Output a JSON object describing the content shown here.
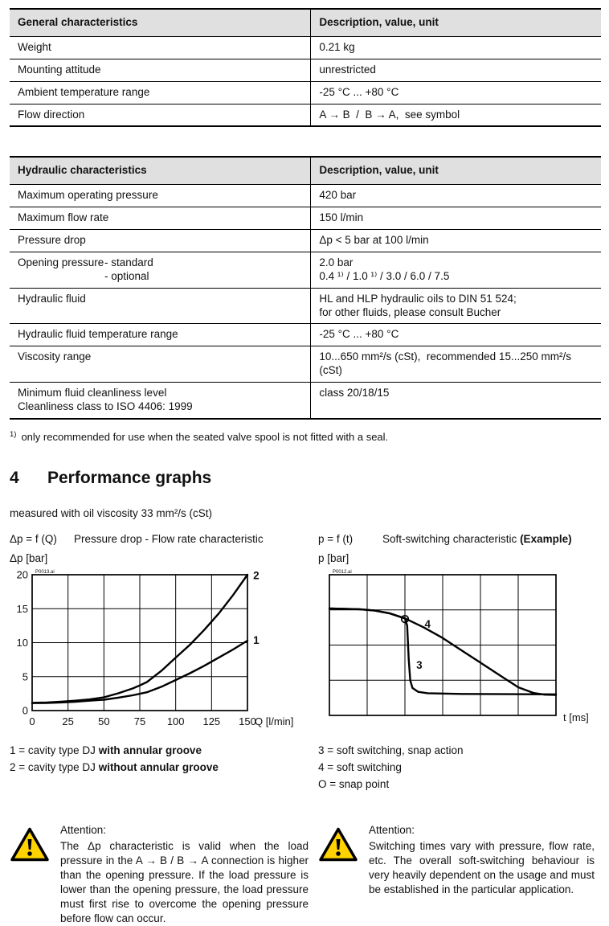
{
  "colors": {
    "table_header_bg": "#e0e0e0",
    "warning_triangle": "#ffd200"
  },
  "general_table": {
    "header": [
      "General characteristics",
      "Description, value, unit"
    ],
    "rows": [
      {
        "label": "Weight",
        "value": "0.21 kg"
      },
      {
        "label": "Mounting attitude",
        "value": "unrestricted"
      },
      {
        "label": "Ambient temperature range",
        "value": "-25 °C ... +80 °C"
      },
      {
        "label": "Flow direction",
        "value": "A → B  /  B → A,  see symbol"
      }
    ]
  },
  "hydraulic_table": {
    "header": [
      "Hydraulic characteristics",
      "Description, value, unit"
    ],
    "rows": [
      {
        "label": "Maximum operating pressure",
        "value": "420 bar"
      },
      {
        "label": "Maximum flow rate",
        "value": "150 l/min"
      },
      {
        "label": "Pressure drop",
        "value": "Δp < 5 bar at 100 l/min"
      },
      {
        "label": "Opening pressure",
        "sub_labels": [
          "- standard",
          "- optional"
        ],
        "value": "2.0 bar\n0.4 ¹⁾ / 1.0 ¹⁾ / 3.0 / 6.0 / 7.5"
      },
      {
        "label": "Hydraulic fluid",
        "value": "HL and HLP hydraulic oils to DIN 51 524;\nfor other fluids, please consult Bucher"
      },
      {
        "label": "Hydraulic fluid temperature range",
        "value": "-25 °C ... +80 °C"
      },
      {
        "label": "Viscosity range",
        "value": "10...650 mm²/s (cSt),  recommended 15...250 mm²/s (cSt)"
      },
      {
        "label": "Minimum fluid cleanliness level\nCleanliness class to ISO 4406: 1999",
        "value": "class 20/18/15"
      }
    ]
  },
  "footnote": {
    "marker": "1)",
    "text": "only recommended for use when the seated valve spool is not fitted with a seal."
  },
  "section": {
    "number": "4",
    "title": "Performance graphs",
    "measured_note": "measured with oil viscosity 33 mm²/s (cSt)"
  },
  "chart_data": [
    {
      "type": "line",
      "name": "pressure-drop-flow-rate",
      "equation": "Δp = f (Q)",
      "title": "Pressure drop - Flow rate characteristic",
      "ylabel": "Δp [bar]",
      "xlabel": "Q [l/min]",
      "watermark": "P0013.ai",
      "xlim": [
        0,
        150
      ],
      "ylim": [
        0,
        20
      ],
      "xticks": [
        0,
        25,
        50,
        75,
        100,
        125,
        150
      ],
      "yticks": [
        0,
        5,
        10,
        15,
        20
      ],
      "grid": true,
      "legend_position": "right-of-curve-end",
      "series": [
        {
          "name": "2",
          "points": [
            [
              0,
              1.15
            ],
            [
              10,
              1.2
            ],
            [
              20,
              1.3
            ],
            [
              30,
              1.45
            ],
            [
              40,
              1.65
            ],
            [
              50,
              1.95
            ],
            [
              60,
              2.55
            ],
            [
              70,
              3.25
            ],
            [
              75,
              3.7
            ],
            [
              80,
              4.2
            ],
            [
              90,
              5.85
            ],
            [
              100,
              7.8
            ],
            [
              110,
              9.7
            ],
            [
              120,
              11.9
            ],
            [
              130,
              14.3
            ],
            [
              140,
              17.0
            ],
            [
              150,
              20.0
            ]
          ],
          "label_at": [
            154,
            19.8
          ]
        },
        {
          "name": "1",
          "points": [
            [
              0,
              1.1
            ],
            [
              10,
              1.12
            ],
            [
              20,
              1.2
            ],
            [
              30,
              1.3
            ],
            [
              40,
              1.45
            ],
            [
              50,
              1.6
            ],
            [
              60,
              1.9
            ],
            [
              70,
              2.25
            ],
            [
              80,
              2.7
            ],
            [
              90,
              3.5
            ],
            [
              100,
              4.5
            ],
            [
              110,
              5.5
            ],
            [
              120,
              6.6
            ],
            [
              130,
              7.8
            ],
            [
              140,
              9.0
            ],
            [
              150,
              10.3
            ]
          ],
          "label_at": [
            154,
            10.3
          ]
        }
      ]
    },
    {
      "type": "line",
      "name": "soft-switching",
      "equation": "p = f (t)",
      "title": "Soft-switching characteristic ",
      "title_em": "(Example)",
      "ylabel": "p [bar]",
      "xlabel": "t [ms]",
      "watermark": "P0012.ai",
      "xlim": [
        0,
        6
      ],
      "ylim": [
        0,
        4
      ],
      "xdiv": 6,
      "ydiv": 4,
      "grid": true,
      "series": [
        {
          "name": "4",
          "points": [
            [
              0,
              3.04
            ],
            [
              0.8,
              3.02
            ],
            [
              1.2,
              2.98
            ],
            [
              1.6,
              2.9
            ],
            [
              2.0,
              2.76
            ],
            [
              2.5,
              2.5
            ],
            [
              3.0,
              2.2
            ],
            [
              3.5,
              1.85
            ],
            [
              4.0,
              1.5
            ],
            [
              4.5,
              1.15
            ],
            [
              5.0,
              0.8
            ],
            [
              5.4,
              0.64
            ],
            [
              5.7,
              0.59
            ],
            [
              6,
              0.58
            ]
          ],
          "label_at": [
            2.52,
            2.58
          ]
        },
        {
          "name": "3",
          "points": [
            [
              0,
              3.04
            ],
            [
              0.8,
              3.02
            ],
            [
              1.2,
              2.98
            ],
            [
              1.6,
              2.9
            ],
            [
              2.0,
              2.76
            ],
            [
              2.06,
              2.55
            ],
            [
              2.1,
              1.6
            ],
            [
              2.14,
              1.0
            ],
            [
              2.2,
              0.78
            ],
            [
              2.35,
              0.67
            ],
            [
              2.6,
              0.63
            ],
            [
              3.5,
              0.61
            ],
            [
              6,
              0.6
            ]
          ],
          "label_at": [
            2.3,
            1.42
          ]
        }
      ],
      "marker": {
        "symbol": "O",
        "at": [
          2.0,
          2.74
        ]
      }
    }
  ],
  "legends": [
    {
      "name": "flow-rate-curves",
      "items": [
        {
          "key": "1",
          "pre": "cavity type DJ ",
          "bold": "with annular groove"
        },
        {
          "key": "2",
          "pre": "cavity type DJ ",
          "bold": "without annular groove"
        }
      ]
    },
    {
      "name": "soft-switching-curves",
      "items": [
        {
          "key": "3",
          "pre": "soft switching, snap action"
        },
        {
          "key": "4",
          "pre": "soft switching"
        },
        {
          "key": "O",
          "pre": "snap point"
        }
      ]
    }
  ],
  "attention_left": {
    "title": "Attention:",
    "text": "The Δp characteristic is valid when the load pressure in the A → B / B → A connection is higher than the opening pressure. If the load pressure is lower than the opening pressure, the load pressure must first rise to overcome the opening pressure before flow can occur."
  },
  "attention_right": {
    "title": "Attention:",
    "text": "Switching times vary with pressure, flow rate, etc. The overall soft-switching behaviour is very heavily dependent on the usage and must be established in the particular application."
  }
}
